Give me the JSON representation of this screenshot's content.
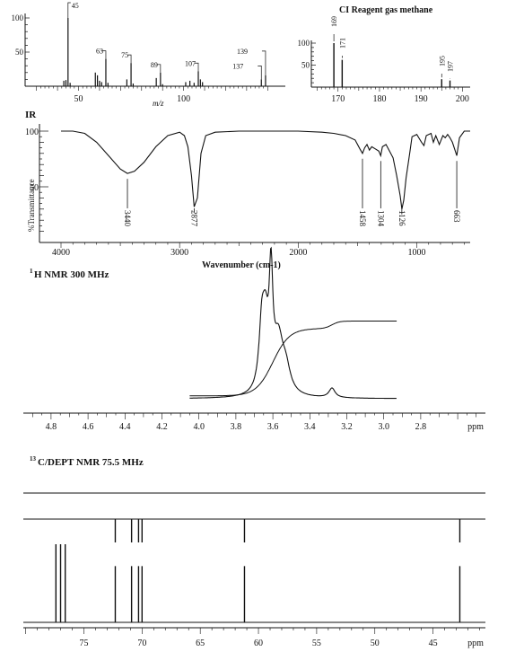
{
  "chart_data": [
    {
      "id": "ms_ei",
      "type": "bar",
      "xlabel": "m/z",
      "ylim": [
        0,
        105
      ],
      "xlim": [
        28,
        145
      ],
      "y_ticks": [
        "100",
        "50"
      ],
      "x_ticks": [
        "50",
        "100"
      ],
      "peaks": [
        {
          "x": 43,
          "y": 8
        },
        {
          "x": 44,
          "y": 9
        },
        {
          "x": 45,
          "y": 100
        },
        {
          "x": 46,
          "y": 5
        },
        {
          "x": 58,
          "y": 20
        },
        {
          "x": 59,
          "y": 16
        },
        {
          "x": 60,
          "y": 8
        },
        {
          "x": 61,
          "y": 6
        },
        {
          "x": 63,
          "y": 40
        },
        {
          "x": 64,
          "y": 5
        },
        {
          "x": 73,
          "y": 10
        },
        {
          "x": 75,
          "y": 34
        },
        {
          "x": 76,
          "y": 4
        },
        {
          "x": 87,
          "y": 12
        },
        {
          "x": 89,
          "y": 20
        },
        {
          "x": 90,
          "y": 3
        },
        {
          "x": 101,
          "y": 6
        },
        {
          "x": 103,
          "y": 8
        },
        {
          "x": 105,
          "y": 5
        },
        {
          "x": 107,
          "y": 22
        },
        {
          "x": 108,
          "y": 10
        },
        {
          "x": 109,
          "y": 6
        },
        {
          "x": 137,
          "y": 10
        },
        {
          "x": 139,
          "y": 16
        }
      ],
      "labels": [
        {
          "text": "45",
          "x": 45
        },
        {
          "text": "63",
          "x": 63
        },
        {
          "text": "75",
          "x": 75
        },
        {
          "text": "89",
          "x": 89
        },
        {
          "text": "107",
          "x": 107
        },
        {
          "text": "139",
          "x": 139
        },
        {
          "text": "137",
          "x": 137
        }
      ]
    },
    {
      "id": "ms_ci",
      "type": "bar",
      "title": "CI Reagent gas methane",
      "xlim": [
        164,
        201
      ],
      "ylim": [
        0,
        105
      ],
      "y_ticks": [
        "100",
        "50"
      ],
      "x_ticks": [
        "170",
        "180",
        "190",
        "200"
      ],
      "peaks": [
        {
          "x": 169,
          "y": 100
        },
        {
          "x": 171,
          "y": 62
        },
        {
          "x": 195,
          "y": 18
        },
        {
          "x": 197,
          "y": 15
        }
      ],
      "labels": [
        {
          "text": "169",
          "x": 169
        },
        {
          "text": "171",
          "x": 171
        },
        {
          "text": "195",
          "x": 195
        },
        {
          "text": "197",
          "x": 197
        }
      ]
    },
    {
      "id": "ir",
      "type": "line",
      "title": "IR",
      "xlabel": "Wavenumber (cm-1)",
      "ylabel": "%Transmittance",
      "xlim": [
        4000,
        550
      ],
      "y_ticks": [
        "100",
        "50"
      ],
      "x_ticks": [
        "4000",
        "3000",
        "2000",
        "1000"
      ],
      "peak_labels": [
        "3440",
        "2877",
        "1458",
        "1304",
        "1126",
        "663"
      ],
      "peak_positions": [
        3440,
        2877,
        1458,
        1304,
        1126,
        663
      ],
      "points": [
        [
          4000,
          100
        ],
        [
          3900,
          100
        ],
        [
          3800,
          98
        ],
        [
          3700,
          90
        ],
        [
          3600,
          78
        ],
        [
          3500,
          66
        ],
        [
          3440,
          62
        ],
        [
          3380,
          64
        ],
        [
          3300,
          72
        ],
        [
          3200,
          86
        ],
        [
          3100,
          96
        ],
        [
          3000,
          99
        ],
        [
          2960,
          96
        ],
        [
          2930,
          86
        ],
        [
          2900,
          60
        ],
        [
          2877,
          32
        ],
        [
          2850,
          40
        ],
        [
          2820,
          80
        ],
        [
          2780,
          96
        ],
        [
          2700,
          99
        ],
        [
          2500,
          100
        ],
        [
          2300,
          100
        ],
        [
          2000,
          100
        ],
        [
          1800,
          99
        ],
        [
          1700,
          98
        ],
        [
          1600,
          96
        ],
        [
          1520,
          92
        ],
        [
          1480,
          84
        ],
        [
          1458,
          80
        ],
        [
          1440,
          85
        ],
        [
          1420,
          88
        ],
        [
          1400,
          83
        ],
        [
          1380,
          86
        ],
        [
          1350,
          84
        ],
        [
          1320,
          82
        ],
        [
          1304,
          78
        ],
        [
          1290,
          86
        ],
        [
          1260,
          88
        ],
        [
          1240,
          84
        ],
        [
          1200,
          76
        ],
        [
          1170,
          60
        ],
        [
          1140,
          42
        ],
        [
          1126,
          30
        ],
        [
          1110,
          38
        ],
        [
          1090,
          58
        ],
        [
          1060,
          80
        ],
        [
          1040,
          95
        ],
        [
          1000,
          97
        ],
        [
          960,
          90
        ],
        [
          940,
          87
        ],
        [
          920,
          96
        ],
        [
          880,
          98
        ],
        [
          860,
          90
        ],
        [
          840,
          96
        ],
        [
          810,
          88
        ],
        [
          780,
          96
        ],
        [
          760,
          94
        ],
        [
          740,
          97
        ],
        [
          720,
          94
        ],
        [
          700,
          90
        ],
        [
          663,
          78
        ],
        [
          640,
          94
        ],
        [
          600,
          100
        ],
        [
          550,
          100
        ]
      ]
    },
    {
      "id": "h_nmr",
      "type": "line",
      "title": "H NMR 300 MHz",
      "title_superscript": "1",
      "xlabel": "ppm",
      "xlim": [
        4.95,
        2.45
      ],
      "x_ticks": [
        "4.8",
        "4.6",
        "4.4",
        "4.2",
        "4.0",
        "3.8",
        "3.6",
        "3.4",
        "3.2",
        "3.0",
        "2.8"
      ],
      "x_tick_values": [
        4.8,
        4.6,
        4.4,
        4.2,
        4.0,
        3.8,
        3.6,
        3.4,
        3.2,
        3.0,
        2.8
      ],
      "signals": [
        {
          "ppm": 3.66,
          "height": 0.55,
          "width": 0.018
        },
        {
          "ppm": 3.64,
          "height": 0.55,
          "width": 0.02
        },
        {
          "ppm": 3.61,
          "height": 1.0,
          "width": 0.012
        },
        {
          "ppm": 3.57,
          "height": 0.48,
          "width": 0.03
        },
        {
          "ppm": 3.53,
          "height": 0.22,
          "width": 0.03
        },
        {
          "ppm": 3.28,
          "height": 0.09,
          "width": 0.02
        }
      ],
      "integral": {
        "start": 4.05,
        "end": 2.93,
        "low": 0.08,
        "high": 0.8
      }
    },
    {
      "id": "c_nmr",
      "type": "bar",
      "title": "C/DEPT NMR 75.5 MHz",
      "title_superscript": "13",
      "xlabel": "ppm",
      "xlim": [
        80.2,
        40.5
      ],
      "x_ticks": [
        "75",
        "70",
        "65",
        "60",
        "55",
        "50",
        "45"
      ],
      "x_tick_values": [
        75,
        70,
        65,
        60,
        55,
        50,
        45
      ],
      "carbon_peaks": [
        {
          "ppm": 77.4,
          "h": 1.0
        },
        {
          "ppm": 77.0,
          "h": 1.0
        },
        {
          "ppm": 76.6,
          "h": 1.0
        },
        {
          "ppm": 72.3,
          "h": 0.72
        },
        {
          "ppm": 70.9,
          "h": 0.72
        },
        {
          "ppm": 70.3,
          "h": 0.72
        },
        {
          "ppm": 70.0,
          "h": 0.72
        },
        {
          "ppm": 61.2,
          "h": 0.72
        },
        {
          "ppm": 42.7,
          "h": 0.72
        }
      ],
      "dept_peaks": [
        {
          "ppm": 72.3,
          "h": 1.0
        },
        {
          "ppm": 70.9,
          "h": 1.0
        },
        {
          "ppm": 70.3,
          "h": 1.0
        },
        {
          "ppm": 70.0,
          "h": 1.0
        },
        {
          "ppm": 61.2,
          "h": 1.0
        },
        {
          "ppm": 42.7,
          "h": 1.0
        }
      ]
    }
  ]
}
